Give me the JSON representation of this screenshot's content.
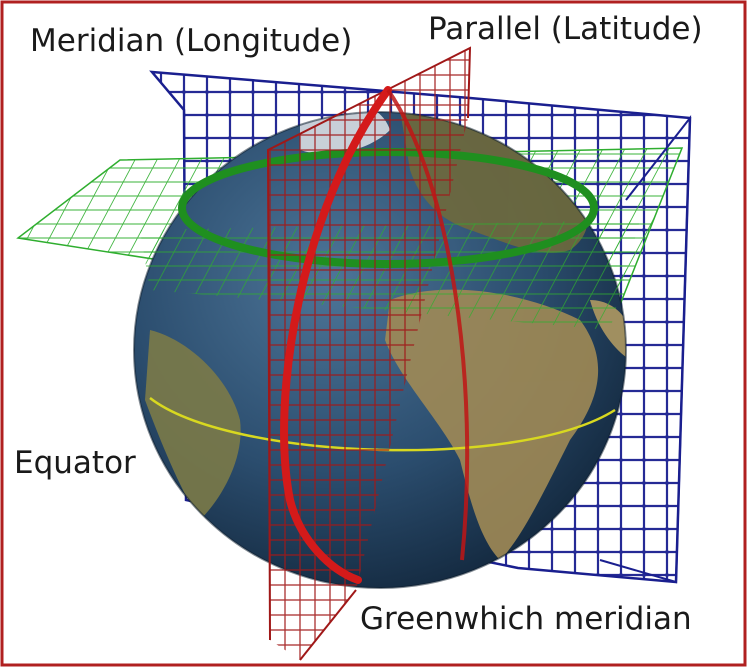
{
  "labels": {
    "meridian": "Meridian (Longitude)",
    "parallel": "Parallel (Latitude)",
    "equator": "Equator",
    "greenwich": "Greenwhich meridian"
  },
  "colors": {
    "frame": "#b02020",
    "meridian_plane_grid": "#1a1f8f",
    "parallel_plane_grid": "#2fae2f",
    "greenwich_plane_grid": "#a01818",
    "parallel_line": "#1f8f1f",
    "greenwich_line": "#d41a1a",
    "equator_line": "#d8d820",
    "ocean": "#2b4d6e",
    "land": "#8a7a4a"
  },
  "icons": {
    "globe": "earth-globe-icon"
  }
}
